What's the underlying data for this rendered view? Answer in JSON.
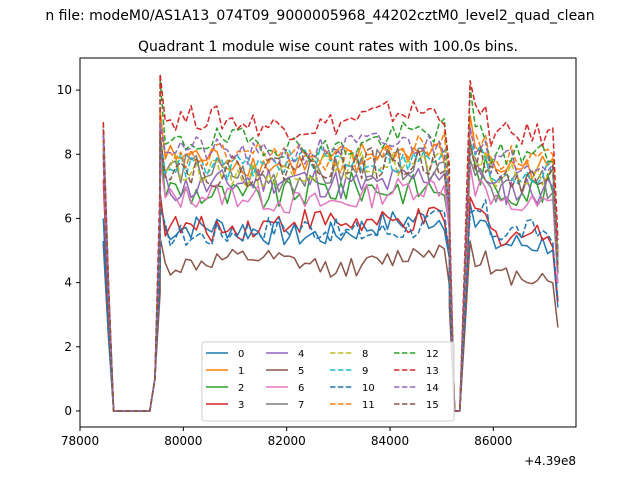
{
  "header": {
    "suptitle": "n file: modeM0/AS1A13_074T09_9000005968_44202cztM0_level2_quad_clean",
    "title": "Quadrant 1 module wise count rates with 100.0s bins."
  },
  "chart_data": {
    "type": "line",
    "title": "Quadrant 1 module wise count rates with 100.0s bins.",
    "xlabel": "",
    "ylabel": "",
    "x_offset_label": "+4.39e8",
    "x_offset": 439000000,
    "xlim": [
      78000,
      87600
    ],
    "ylim": [
      -0.5,
      11
    ],
    "xticks": [
      78000,
      80000,
      82000,
      84000,
      86000
    ],
    "xtick_labels": [
      "78000",
      "80000",
      "82000",
      "84000",
      "86000"
    ],
    "yticks": [
      0,
      2,
      4,
      6,
      8,
      10
    ],
    "ytick_labels": [
      "0",
      "2",
      "4",
      "6",
      "8",
      "10"
    ],
    "grid": false,
    "legend_placement": "lower center",
    "segment_1_x": [
      78450,
      78550,
      78650,
      78750,
      78850,
      78950,
      79050,
      79150,
      79250,
      79350,
      79450,
      79550
    ],
    "segment_2_x": [
      79550,
      79650,
      79750,
      79850,
      79950,
      80050,
      80150,
      80250,
      80350,
      80450,
      80550,
      80650,
      80750,
      80850,
      80950,
      81050,
      81150,
      81250,
      81350,
      81450,
      81550,
      81650,
      81750,
      81850,
      81950,
      82050,
      82150,
      82250,
      82350,
      82450,
      82550,
      82650,
      82750,
      82850,
      82950,
      83050,
      83150,
      83250,
      83350,
      83450,
      83550,
      83650,
      83750,
      83850,
      83950,
      84050,
      84150,
      84250,
      84350,
      84450,
      84550,
      84650,
      84750,
      84850,
      84950,
      85050,
      85150
    ],
    "segment_3_x": [
      85150,
      85250,
      85350,
      85450,
      85550,
      85650,
      85750,
      85850,
      85950,
      86050,
      86150,
      86250,
      86350,
      86450,
      86550,
      86650,
      86750,
      86850,
      86950,
      87050,
      87150,
      87250
    ],
    "series": [
      {
        "name": "0",
        "color": "#1f77b4",
        "dash": "solid",
        "start": 6.0,
        "mid": 5.6,
        "end": 5.2,
        "spike": 6.6,
        "var": 0.4
      },
      {
        "name": "1",
        "color": "#ff7f0e",
        "dash": "solid",
        "start": 8.7,
        "mid": 7.8,
        "end": 7.6,
        "spike": 9.4,
        "var": 0.4
      },
      {
        "name": "2",
        "color": "#2ca02c",
        "dash": "solid",
        "start": 8.2,
        "mid": 6.8,
        "end": 6.9,
        "spike": 8.5,
        "var": 0.5
      },
      {
        "name": "3",
        "color": "#d62728",
        "dash": "solid",
        "start": 7.2,
        "mid": 5.8,
        "end": 5.5,
        "spike": 6.8,
        "var": 0.4
      },
      {
        "name": "4",
        "color": "#9467bd",
        "dash": "solid",
        "start": 8.5,
        "mid": 7.1,
        "end": 6.9,
        "spike": 8.2,
        "var": 0.5
      },
      {
        "name": "5",
        "color": "#8c564b",
        "dash": "solid",
        "start": 5.2,
        "mid": 4.6,
        "end": 4.2,
        "spike": 5.4,
        "var": 0.3
      },
      {
        "name": "6",
        "color": "#e377c2",
        "dash": "solid",
        "start": 7.8,
        "mid": 6.6,
        "end": 6.4,
        "spike": 7.8,
        "var": 0.4
      },
      {
        "name": "7",
        "color": "#7f7f7f",
        "dash": "solid",
        "start": 8.8,
        "mid": 7.4,
        "end": 7.0,
        "spike": 8.0,
        "var": 0.5
      },
      {
        "name": "8",
        "color": "#bcbd22",
        "dash": "dashed",
        "start": 8.4,
        "mid": 7.5,
        "end": 7.3,
        "spike": 8.4,
        "var": 0.4
      },
      {
        "name": "9",
        "color": "#17becf",
        "dash": "dashed",
        "start": 8.6,
        "mid": 7.7,
        "end": 7.4,
        "spike": 8.6,
        "var": 0.4
      },
      {
        "name": "10",
        "color": "#1f77b4",
        "dash": "dashed",
        "start": 5.3,
        "mid": 5.6,
        "end": 5.6,
        "spike": 6.3,
        "var": 0.4
      },
      {
        "name": "11",
        "color": "#ff7f0e",
        "dash": "dashed",
        "start": 8.5,
        "mid": 7.9,
        "end": 7.9,
        "spike": 8.8,
        "var": 0.4
      },
      {
        "name": "12",
        "color": "#2ca02c",
        "dash": "dashed",
        "start": 9.0,
        "mid": 8.3,
        "end": 8.0,
        "spike": 10.3,
        "var": 0.4
      },
      {
        "name": "13",
        "color": "#d62728",
        "dash": "dashed",
        "start": 9.0,
        "mid": 9.0,
        "end": 8.6,
        "spike": 10.5,
        "var": 0.4
      },
      {
        "name": "14",
        "color": "#9467bd",
        "dash": "dashed",
        "start": 8.6,
        "mid": 8.1,
        "end": 7.8,
        "spike": 9.0,
        "var": 0.4
      },
      {
        "name": "15",
        "color": "#8c564b",
        "dash": "dashed",
        "start": 8.0,
        "mid": 7.6,
        "end": 7.2,
        "spike": 8.6,
        "var": 0.5
      }
    ]
  }
}
